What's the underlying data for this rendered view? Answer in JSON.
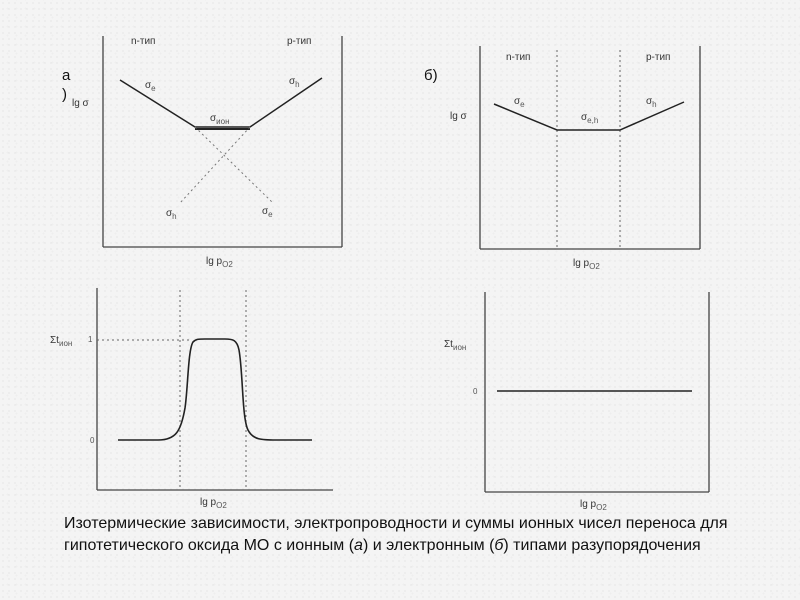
{
  "panel_a": {
    "label_line1": "а",
    "label_line2": ")",
    "top": {
      "y_label": "lg σ",
      "x_label": "lg p",
      "x_sub": "O2",
      "region_left": "n-тип",
      "region_right": "p-тип",
      "sigma_left": "σ",
      "sigma_left_sub": "e",
      "sigma_right": "σ",
      "sigma_right_sub": "h",
      "sigma_mid": "σ",
      "sigma_mid_sub": "ион",
      "sigma_lower_left": "σ",
      "sigma_lower_left_sub": "h",
      "sigma_lower_right": "σ",
      "sigma_lower_right_sub": "e"
    },
    "bottom": {
      "y_label": "Σt",
      "y_sub": "ион",
      "y_top_tick": "1",
      "y_low_tick": "0",
      "x_label": "lg p",
      "x_sub": "O2"
    }
  },
  "panel_b": {
    "label": "б)",
    "top": {
      "y_label": "lg σ",
      "x_label": "lg p",
      "x_sub": "O2",
      "region_left": "n-тип",
      "region_right": "p-тип",
      "sigma_left": "σ",
      "sigma_left_sub": "e",
      "sigma_right": "σ",
      "sigma_right_sub": "h",
      "sigma_mid": "σ",
      "sigma_mid_sub": "e,h"
    },
    "bottom": {
      "y_label": "Σt",
      "y_sub": "ион",
      "y_tick": "0",
      "x_label": "lg p",
      "x_sub": "O2"
    }
  },
  "caption": {
    "text_1": "Изотермические зависимости, электропроводности и суммы ионных чисел переноса для гипотетического оксида МО с ионным (",
    "em_1": "а",
    "text_2": ") и электронным (",
    "em_2": "б",
    "text_3": ") типами разупорядочения"
  }
}
